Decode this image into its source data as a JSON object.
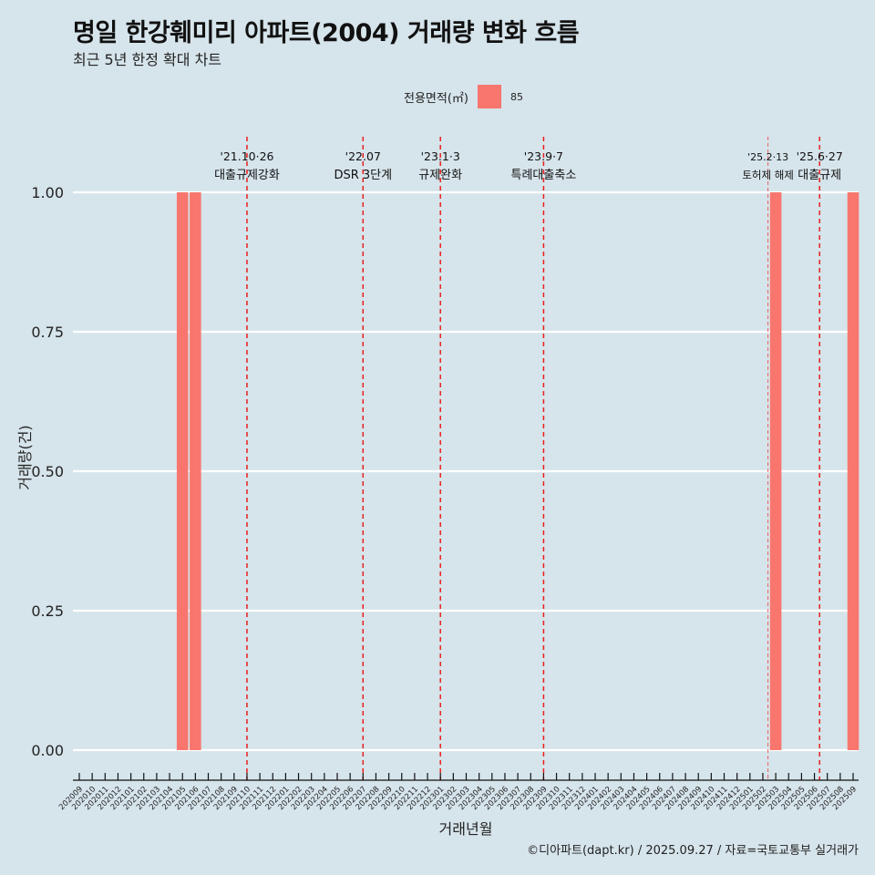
{
  "chart_data": {
    "type": "bar",
    "title": "명일 한강훼미리 아파트(2004) 거래량 변화 흐름",
    "subtitle": "최근 5년 한정 확대 차트",
    "xlabel": "거래년월",
    "ylabel": "거래량(건)",
    "ylim": [
      0,
      1
    ],
    "y_ticks": [
      "0.00",
      "0.25",
      "0.50",
      "0.75",
      "1.00"
    ],
    "legend_title": "전용면적(㎡)",
    "legend_position": "top",
    "series": [
      {
        "name": "85",
        "color": "#f8766d",
        "values": [
          {
            "month": "202105",
            "value": 1
          },
          {
            "month": "202106",
            "value": 1
          },
          {
            "month": "202503",
            "value": 1
          },
          {
            "month": "202509",
            "value": 1
          }
        ]
      }
    ],
    "categories": [
      "202009",
      "202010",
      "202011",
      "202012",
      "202101",
      "202102",
      "202103",
      "202104",
      "202105",
      "202106",
      "202107",
      "202108",
      "202109",
      "202110",
      "202111",
      "202112",
      "202201",
      "202202",
      "202203",
      "202204",
      "202205",
      "202206",
      "202207",
      "202208",
      "202209",
      "202210",
      "202211",
      "202212",
      "202301",
      "202302",
      "202303",
      "202304",
      "202305",
      "202306",
      "202307",
      "202308",
      "202309",
      "202310",
      "202311",
      "202312",
      "202401",
      "202402",
      "202403",
      "202404",
      "202405",
      "202406",
      "202407",
      "202408",
      "202409",
      "202410",
      "202411",
      "202412",
      "202501",
      "202502",
      "202503",
      "202504",
      "202505",
      "202506",
      "202507",
      "202508",
      "202509"
    ],
    "events": [
      {
        "pos": 13.0,
        "date": "'21.10·26",
        "label": "대출규제강화",
        "style": "dashed"
      },
      {
        "pos": 22.0,
        "date": "'22.07",
        "label": "DSR 3단계",
        "style": "dashed"
      },
      {
        "pos": 28.0,
        "date": "'23.1·3",
        "label": "규제완화",
        "style": "dashed"
      },
      {
        "pos": 36.0,
        "date": "'23.9·7",
        "label": "특례대출축소",
        "style": "dashed"
      },
      {
        "pos": 53.4,
        "date": "'25.2·13",
        "label": "토허제 해제",
        "style": "thin"
      },
      {
        "pos": 57.4,
        "date": "'25.6·27",
        "label": "대출규제",
        "style": "dashed"
      }
    ],
    "caption": "©디아파트(dapt.kr) / 2025.09.27 / 자료=국토교통부 실거래가"
  }
}
